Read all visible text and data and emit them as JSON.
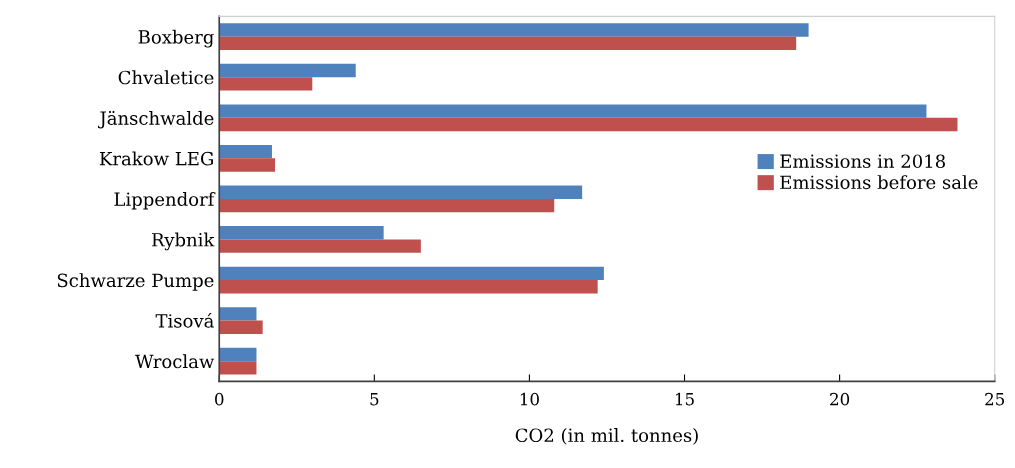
{
  "chart_data": {
    "type": "bar",
    "orientation": "horizontal",
    "xlabel": "CO2 (in mil. tonnes)",
    "categories": [
      "Boxberg",
      "Chvaletice",
      "Jänschwalde",
      "Krakow LEG",
      "Lippendorf",
      "Rybnik",
      "Schwarze Pumpe",
      "Tisová",
      "Wroclaw"
    ],
    "series": [
      {
        "name": "Emissions in 2018",
        "color": "#4f81bd",
        "values": [
          19.0,
          4.4,
          22.8,
          1.7,
          11.7,
          5.3,
          12.4,
          1.2,
          1.2
        ]
      },
      {
        "name": "Emissions before sale",
        "color": "#c0504d",
        "values": [
          18.6,
          3.0,
          23.8,
          1.8,
          10.8,
          6.5,
          12.2,
          1.4,
          1.2
        ]
      }
    ],
    "xlim": [
      0,
      25
    ],
    "xticks": [
      0,
      5,
      10,
      15,
      20,
      25
    ],
    "grid": false,
    "legend": "right"
  }
}
